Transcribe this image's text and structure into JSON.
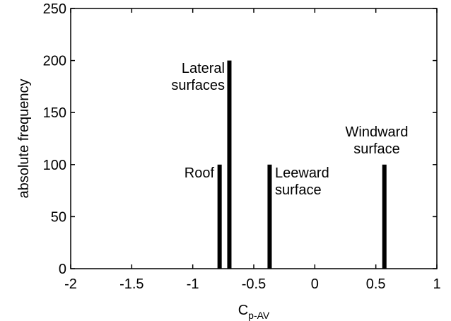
{
  "chart_data": {
    "type": "bar",
    "x": [
      -0.78,
      -0.7,
      -0.37,
      0.57
    ],
    "values": [
      100,
      200,
      100,
      100
    ],
    "color": "#000000",
    "xlim": [
      -2,
      1
    ],
    "xticks": [
      -2,
      -1.5,
      -1,
      -0.5,
      0,
      0.5,
      1
    ],
    "ylim": [
      0,
      250
    ],
    "yticks": [
      0,
      50,
      100,
      150,
      200,
      250
    ],
    "x_label": "C",
    "x_label_subscript": "p-AV",
    "y_label": "absolute frequency",
    "annotations": [
      [
        "Roof"
      ],
      [
        "Lateral",
        "surfaces"
      ],
      [
        "Leeward",
        "surface"
      ],
      [
        "Windward",
        "surface"
      ]
    ],
    "grid": false
  }
}
